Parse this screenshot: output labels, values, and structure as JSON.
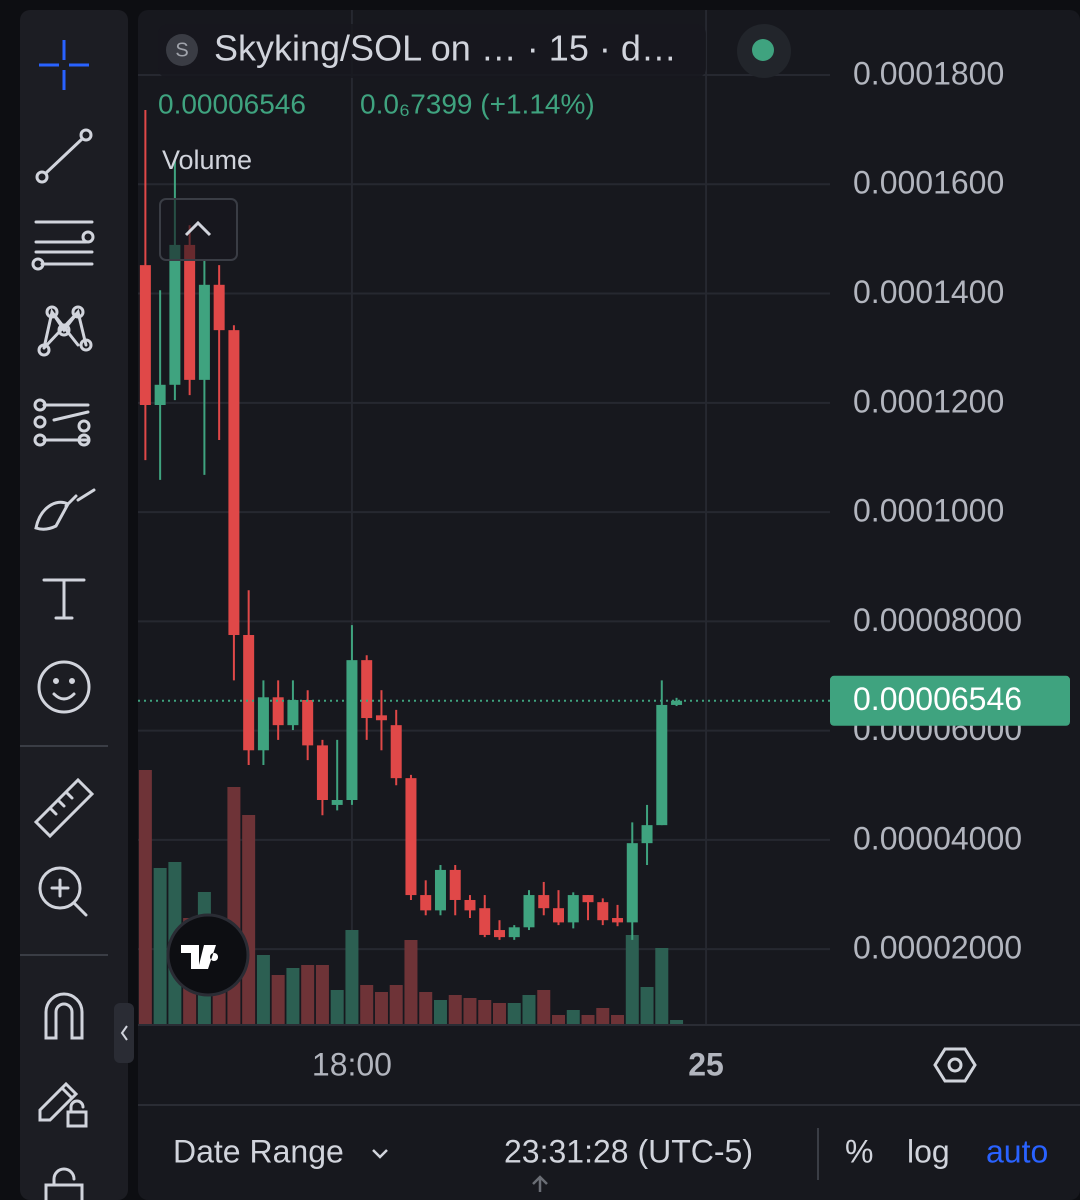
{
  "header": {
    "symbol_badge": "S",
    "title": "Skyking/SOL on … · 15 · d…",
    "change": "0.0₆7399 (+1.14%)",
    "indicator": "Volume"
  },
  "chart_data": {
    "type": "candlestick",
    "open": [
      0.0001452,
      0.0001196,
      0.0001233,
      0.0001489,
      0.0001242,
      0.0001416,
      0.0001333,
      7.75e-05,
      5.64e-05,
      6.61e-05,
      6.1e-05,
      6.56e-05,
      5.73e-05,
      4.64e-05,
      4.73e-05,
      7.29e-05,
      6.28e-05,
      6.1e-05,
      5.13e-05,
      2.99e-05,
      2.71e-05,
      3.45e-05,
      2.9e-05,
      2.75e-05,
      2.35e-05,
      2.22e-05,
      2.4e-05,
      2.99e-05,
      2.75e-05,
      2.49e-05,
      2.99e-05,
      2.86e-05,
      2.57e-05,
      2.49e-05,
      3.94e-05,
      4.27e-05,
      6.47e-05
    ],
    "high": [
      0.0001736,
      0.0001406,
      0.0001644,
      0.0001525,
      0.0001461,
      0.0001452,
      0.0001342,
      8.57e-05,
      6.92e-05,
      6.92e-05,
      6.92e-05,
      6.74e-05,
      5.83e-05,
      5.83e-05,
      7.93e-05,
      7.38e-05,
      6.74e-05,
      6.38e-05,
      5.19e-05,
      3.26e-05,
      3.54e-05,
      3.54e-05,
      2.99e-05,
      2.99e-05,
      2.53e-05,
      2.44e-05,
      3.08e-05,
      3.23e-05,
      3.08e-05,
      3.04e-05,
      2.99e-05,
      2.93e-05,
      2.81e-05,
      4.32e-05,
      4.64e-05,
      6.92e-05,
      6.6e-05
    ],
    "low": [
      0.0001095,
      0.0001059,
      0.0001205,
      0.0001214,
      0.0001068,
      0.0001132,
      6.92e-05,
      5.37e-05,
      5.37e-05,
      5.83e-05,
      6.01e-05,
      5.46e-05,
      4.45e-05,
      4.54e-05,
      4.64e-05,
      5.83e-05,
      5.64e-05,
      5e-05,
      2.9e-05,
      2.62e-05,
      2.62e-05,
      2.62e-05,
      2.57e-05,
      2.22e-05,
      2.17e-05,
      2.17e-05,
      2.35e-05,
      2.62e-05,
      2.44e-05,
      2.38e-05,
      2.53e-05,
      2.44e-05,
      2.42e-05,
      2.17e-05,
      3.54e-05,
      4.27e-05,
      6.45e-05
    ],
    "close": [
      0.0001196,
      0.0001233,
      0.0001489,
      0.0001242,
      0.0001416,
      0.0001333,
      7.75e-05,
      5.64e-05,
      6.61e-05,
      6.1e-05,
      6.56e-05,
      5.73e-05,
      4.73e-05,
      4.73e-05,
      7.29e-05,
      6.23e-05,
      6.19e-05,
      5.13e-05,
      2.99e-05,
      2.71e-05,
      3.45e-05,
      2.9e-05,
      2.71e-05,
      2.26e-05,
      2.22e-05,
      2.4e-05,
      2.99e-05,
      2.75e-05,
      2.49e-05,
      2.99e-05,
      2.86e-05,
      2.53e-05,
      2.49e-05,
      3.94e-05,
      4.27e-05,
      6.47e-05,
      6.546e-05
    ],
    "volume": [
      254,
      156,
      162,
      106,
      132,
      104,
      237,
      209,
      69,
      49,
      56,
      59,
      59,
      34,
      94,
      39,
      32,
      39,
      84,
      32,
      24,
      29,
      26,
      24,
      21,
      21,
      29,
      34,
      9,
      14,
      9,
      16,
      9,
      89,
      37,
      76,
      4
    ],
    "up_color": "#3fa37f",
    "down_color": "#e04848",
    "up_volume_color": "#2c5f52",
    "down_volume_color": "#6e3337",
    "last_price": 6.546e-05,
    "ylim": [
      6.3e-06,
      0.0001919
    ],
    "yticks": [
      {
        "value": 2e-05,
        "label": "0.00002000"
      },
      {
        "value": 4e-05,
        "label": "0.00004000"
      },
      {
        "value": 6e-05,
        "label": "0.00006000"
      },
      {
        "value": 8e-05,
        "label": "0.00008000"
      },
      {
        "value": 0.0001,
        "label": "0.0001000"
      },
      {
        "value": 0.00012,
        "label": "0.0001200"
      },
      {
        "value": 0.00014,
        "label": "0.0001400"
      },
      {
        "value": 0.00016,
        "label": "0.0001600"
      },
      {
        "value": 0.00018,
        "label": "0.0001800"
      }
    ],
    "xlim": [
      -0.5,
      46.4
    ],
    "xticks": [
      {
        "value": 14,
        "label": "18:00"
      },
      {
        "value": 38,
        "label": "25"
      }
    ],
    "grid": true
  },
  "footer": {
    "date_range": "Date Range",
    "clock": "23:31:28 (UTC-5)",
    "percent": "%",
    "log": "log",
    "auto": "auto"
  }
}
